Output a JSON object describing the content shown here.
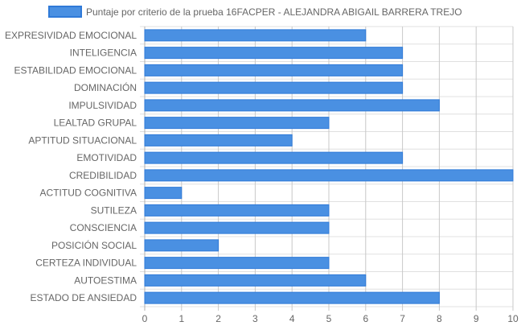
{
  "chart_data": {
    "type": "bar",
    "orientation": "horizontal",
    "categories": [
      "EXPRESIVIDAD EMOCIONAL",
      "INTELIGENCIA",
      "ESTABILIDAD EMOCIONAL",
      "DOMINACIÓN",
      "IMPULSIVIDAD",
      "LEALTAD GRUPAL",
      "APTITUD SITUACIONAL",
      "EMOTIVIDAD",
      "CREDIBILIDAD",
      "ACTITUD COGNITIVA",
      "SUTILEZA",
      "CONSCIENCIA",
      "POSICIÓN SOCIAL",
      "CERTEZA INDIVIDUAL",
      "AUTOESTIMA",
      "ESTADO DE ANSIEDAD"
    ],
    "series": [
      {
        "name": "Puntaje por criterio de la prueba 16FACPER - ALEJANDRA ABIGAIL BARRERA TREJO",
        "values": [
          6,
          7,
          7,
          7,
          8,
          5,
          4,
          7,
          10,
          1,
          5,
          5,
          2,
          5,
          6,
          8
        ]
      }
    ],
    "xlim": [
      0,
      10
    ],
    "x_ticks": [
      0,
      1,
      2,
      3,
      4,
      5,
      6,
      7,
      8,
      9,
      10
    ],
    "grid": true,
    "legend_position": "top",
    "bar_color": "#4a90e2",
    "bar_border_color": "#2f7ad8",
    "grid_color": "#e0e0e0"
  }
}
